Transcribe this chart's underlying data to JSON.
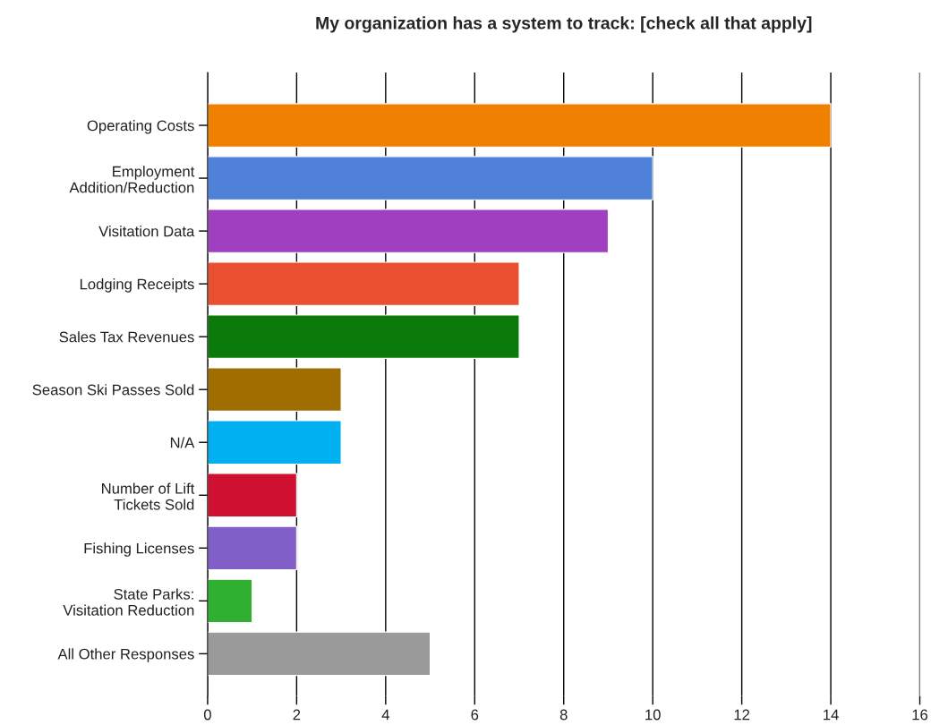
{
  "chart_data": {
    "type": "bar",
    "orientation": "horizontal",
    "title": "My organization has a system to track: [check all that apply]",
    "categories": [
      "Operating Costs",
      "Employment\nAddition/Reduction",
      "Visitation Data",
      "Lodging Receipts",
      "Sales Tax Revenues",
      "Season Ski Passes Sold",
      "N/A",
      "Number of Lift\nTickets Sold",
      "Fishing Licenses",
      "State Parks:\nVisitation Reduction",
      "All Other Responses"
    ],
    "values": [
      14,
      10,
      9,
      7,
      7,
      3,
      3,
      2,
      2,
      1,
      5
    ],
    "colors": [
      "#f08000",
      "#4f81d8",
      "#a040c0",
      "#e85030",
      "#0a7a0a",
      "#a06e00",
      "#00b0f0",
      "#d01030",
      "#8060c8",
      "#30b030",
      "#9a9a9a"
    ],
    "xlim": [
      0,
      16
    ],
    "xticks": [
      0,
      2,
      4,
      6,
      8,
      10,
      12,
      14,
      16
    ],
    "grid": "x",
    "legend": false
  }
}
